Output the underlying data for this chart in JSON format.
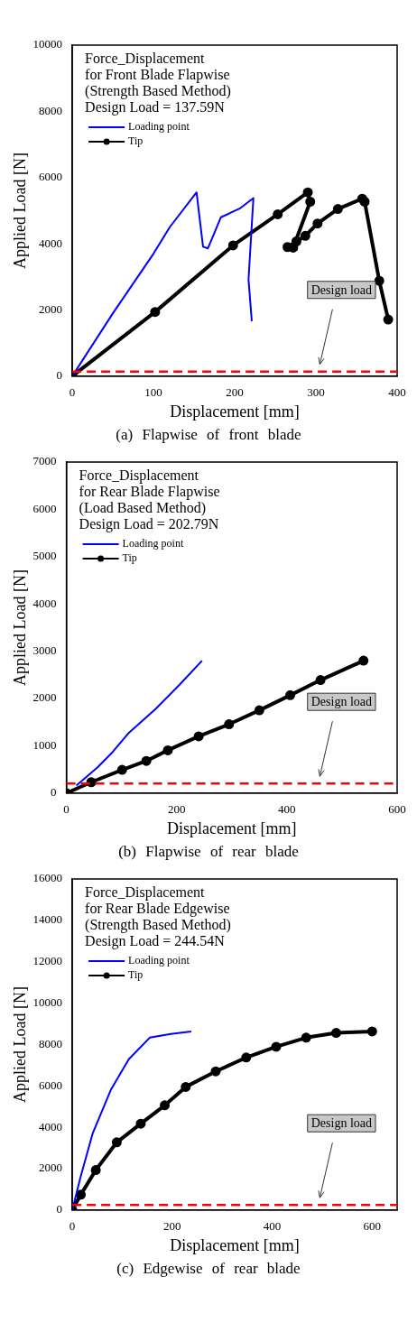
{
  "chart_data": [
    {
      "type": "line",
      "title": "Force_Displacement\nfor Front Blade Flapwise\n(Strength Based Method)\nDesign Load = 137.59N",
      "xlabel": "Displacement [mm]",
      "ylabel": "Applied Load [N]",
      "xlim": [
        0,
        400
      ],
      "ylim": [
        0,
        10000
      ],
      "xticks": [
        0,
        100,
        200,
        300,
        400
      ],
      "yticks": [
        0,
        2000,
        4000,
        6000,
        8000,
        10000
      ],
      "legend": "top left",
      "annotations": [
        "(a) Flapwise of front blade"
      ],
      "ref_lines": [
        {
          "axis": "y",
          "value": 137.59,
          "label": "Design load",
          "color": "#ff0000",
          "line_style": "dashed"
        }
      ],
      "series": [
        {
          "name": "Loading point",
          "color": "#0000ff",
          "marker": "none",
          "x": [
            0,
            50,
            100,
            120,
            153,
            161,
            167,
            183,
            206,
            223,
            217,
            221
          ],
          "values": [
            0,
            1900,
            3700,
            4500,
            5550,
            3910,
            3860,
            4800,
            5060,
            5380,
            2920,
            1660
          ]
        },
        {
          "name": "Tip",
          "color": "#000000",
          "marker": "circle",
          "x": [
            0,
            102,
            198,
            253,
            290,
            293,
            272,
            265,
            276,
            287,
            302,
            327,
            357,
            360,
            378,
            389
          ],
          "values": [
            0,
            1940,
            3950,
            4890,
            5550,
            5270,
            3880,
            3900,
            4070,
            4240,
            4610,
            5050,
            5360,
            5270,
            2880,
            1710
          ]
        }
      ]
    },
    {
      "type": "line",
      "title": "Force_Displacement\nfor Rear Blade Flapwise\n(Load Based Method)\nDesign Load = 202.79N",
      "xlabel": "Displacement [mm]",
      "ylabel": "Applied Load [N]",
      "xlim": [
        0,
        600
      ],
      "ylim": [
        0,
        7000
      ],
      "xticks": [
        0,
        200,
        400,
        600
      ],
      "yticks": [
        0,
        1000,
        2000,
        3000,
        4000,
        5000,
        6000,
        7000
      ],
      "legend": "top left",
      "annotations": [
        "(b) Flapwise of rear blade"
      ],
      "ref_lines": [
        {
          "axis": "y",
          "value": 202.79,
          "label": "Design load",
          "color": "#ff0000",
          "line_style": "dashed"
        }
      ],
      "series": [
        {
          "name": "Loading point",
          "color": "#0000ff",
          "marker": "none",
          "x": [
            18,
            57,
            84,
            112,
            162,
            206,
            246
          ],
          "values": [
            160,
            550,
            870,
            1260,
            1780,
            2300,
            2800
          ]
        },
        {
          "name": "Tip",
          "color": "#000000",
          "marker": "circle",
          "x": [
            0,
            45,
            101,
            145,
            184,
            240,
            295,
            350,
            406,
            461,
            539
          ],
          "values": [
            0,
            230,
            490,
            680,
            905,
            1200,
            1455,
            1750,
            2070,
            2390,
            2800
          ]
        }
      ]
    },
    {
      "type": "line",
      "title": "Force_Displacement\nfor Rear Blade Edgewise\n(Strength Based Method)\nDesign Load = 244.54N",
      "xlabel": "Displacement [mm]",
      "ylabel": "Applied Load [N]",
      "xlim": [
        0,
        650
      ],
      "ylim": [
        0,
        16000
      ],
      "xticks": [
        0,
        200,
        400,
        600
      ],
      "yticks": [
        0,
        2000,
        4000,
        6000,
        8000,
        10000,
        12000,
        14000,
        16000
      ],
      "legend": "top left",
      "annotations": [
        "(c) Edgewise of rear blade"
      ],
      "ref_lines": [
        {
          "axis": "y",
          "value": 244.54,
          "label": "Design load",
          "color": "#ff0000",
          "line_style": "dashed"
        }
      ],
      "series": [
        {
          "name": "Loading point",
          "color": "#0000ff",
          "marker": "none",
          "x": [
            0,
            17,
            41,
            77,
            113,
            155,
            197,
            238
          ],
          "values": [
            0,
            1640,
            3720,
            5800,
            7290,
            8330,
            8510,
            8630
          ]
        },
        {
          "name": "Tip",
          "color": "#000000",
          "marker": "circle",
          "x": [
            0,
            17,
            47,
            89,
            137,
            185,
            227,
            287,
            348,
            408,
            468,
            528,
            600
          ],
          "values": [
            0,
            740,
            1930,
            3270,
            4170,
            5060,
            5950,
            6700,
            7370,
            7890,
            8330,
            8560,
            8630
          ]
        }
      ]
    }
  ]
}
